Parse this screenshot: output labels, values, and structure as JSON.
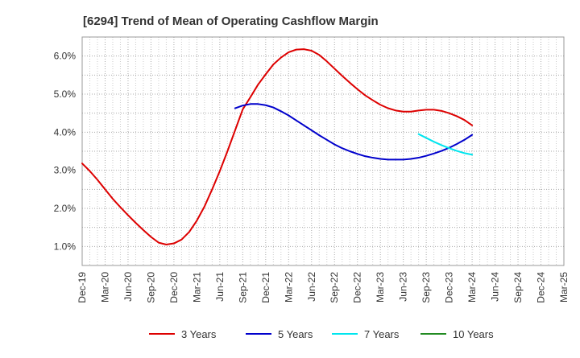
{
  "chart_data": {
    "type": "line",
    "title": "[6294]  Trend of Mean of Operating Cashflow Margin",
    "xlabel": "",
    "ylabel": "",
    "x_ticks": [
      "Dec-19",
      "Mar-20",
      "Jun-20",
      "Sep-20",
      "Dec-20",
      "Mar-21",
      "Jun-21",
      "Sep-21",
      "Dec-21",
      "Mar-22",
      "Jun-22",
      "Sep-22",
      "Dec-22",
      "Mar-23",
      "Jun-23",
      "Sep-23",
      "Dec-23",
      "Mar-24",
      "Jun-24",
      "Sep-24",
      "Dec-24",
      "Mar-25"
    ],
    "y_ticks": [
      1.0,
      2.0,
      3.0,
      4.0,
      5.0,
      6.0
    ],
    "y_tick_labels": [
      "1.0%",
      "2.0%",
      "3.0%",
      "4.0%",
      "5.0%",
      "6.0%"
    ],
    "ylim": [
      0.5,
      6.5
    ],
    "grid": true,
    "legend_position": "bottom",
    "series": [
      {
        "name": "3 Years",
        "color": "#dd0000",
        "x": [
          "Dec-19",
          "Jan-20",
          "Feb-20",
          "Mar-20",
          "Apr-20",
          "May-20",
          "Jun-20",
          "Jul-20",
          "Aug-20",
          "Sep-20",
          "Oct-20",
          "Nov-20",
          "Dec-20",
          "Jan-21",
          "Feb-21",
          "Mar-21",
          "Apr-21",
          "May-21",
          "Jun-21",
          "Jul-21",
          "Aug-21",
          "Sep-21",
          "Oct-21",
          "Nov-21",
          "Dec-21",
          "Jan-22",
          "Feb-22",
          "Mar-22",
          "Apr-22",
          "May-22",
          "Jun-22",
          "Jul-22",
          "Aug-22",
          "Sep-22",
          "Oct-22",
          "Nov-22",
          "Dec-22",
          "Jan-23",
          "Feb-23",
          "Mar-23",
          "Apr-23",
          "May-23",
          "Jun-23",
          "Jul-23",
          "Aug-23",
          "Sep-23",
          "Oct-23",
          "Nov-23",
          "Dec-23",
          "Jan-24",
          "Feb-24",
          "Mar-24"
        ],
        "values": [
          3.18,
          2.98,
          2.75,
          2.5,
          2.25,
          2.03,
          1.82,
          1.62,
          1.43,
          1.25,
          1.1,
          1.05,
          1.08,
          1.18,
          1.38,
          1.68,
          2.05,
          2.5,
          2.98,
          3.5,
          4.05,
          4.6,
          4.92,
          5.25,
          5.52,
          5.78,
          5.96,
          6.1,
          6.17,
          6.18,
          6.14,
          6.03,
          5.86,
          5.67,
          5.48,
          5.3,
          5.13,
          4.97,
          4.84,
          4.72,
          4.63,
          4.57,
          4.54,
          4.54,
          4.57,
          4.59,
          4.59,
          4.56,
          4.5,
          4.42,
          4.32,
          4.18
        ]
      },
      {
        "name": "5 Years",
        "color": "#0000cc",
        "x": [
          "Aug-21",
          "Sep-21",
          "Oct-21",
          "Nov-21",
          "Dec-21",
          "Jan-22",
          "Feb-22",
          "Mar-22",
          "Apr-22",
          "May-22",
          "Jun-22",
          "Jul-22",
          "Aug-22",
          "Sep-22",
          "Oct-22",
          "Nov-22",
          "Dec-22",
          "Jan-23",
          "Feb-23",
          "Mar-23",
          "Apr-23",
          "May-23",
          "Jun-23",
          "Jul-23",
          "Aug-23",
          "Sep-23",
          "Oct-23",
          "Nov-23",
          "Dec-23",
          "Jan-24",
          "Feb-24",
          "Mar-24"
        ],
        "values": [
          4.63,
          4.7,
          4.74,
          4.74,
          4.71,
          4.65,
          4.55,
          4.44,
          4.31,
          4.18,
          4.05,
          3.92,
          3.8,
          3.68,
          3.58,
          3.5,
          3.43,
          3.37,
          3.33,
          3.3,
          3.28,
          3.28,
          3.28,
          3.3,
          3.33,
          3.38,
          3.44,
          3.51,
          3.59,
          3.69,
          3.8,
          3.93
        ]
      },
      {
        "name": "7 Years",
        "color": "#00e5ee",
        "x": [
          "Aug-23",
          "Sep-23",
          "Oct-23",
          "Nov-23",
          "Dec-23",
          "Jan-24",
          "Feb-24",
          "Mar-24"
        ],
        "values": [
          3.95,
          3.85,
          3.75,
          3.66,
          3.58,
          3.51,
          3.45,
          3.41
        ]
      },
      {
        "name": "10 Years",
        "color": "#228b22",
        "x": [],
        "values": []
      }
    ]
  }
}
